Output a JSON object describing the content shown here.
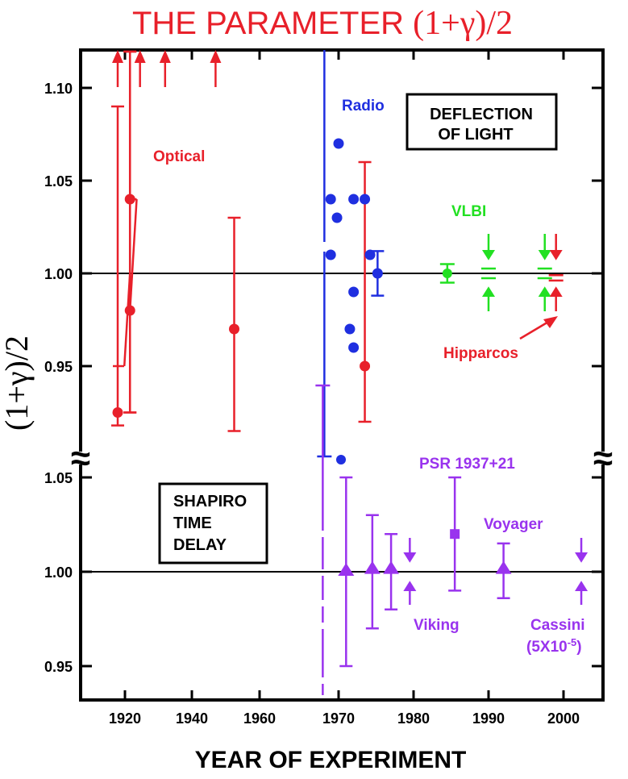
{
  "title": {
    "main": "THE PARAMETER ",
    "expr": "(1+γ)/2",
    "color": "#e8202a"
  },
  "xlabel": "YEAR OF EXPERIMENT",
  "ylabel": "(1+γ)/2",
  "break_symbol": "≈",
  "colors": {
    "optical": "#e8202a",
    "radio": "#1f2fe0",
    "vlbi": "#22e022",
    "shapiro": "#9933ee",
    "axis": "#000000"
  },
  "chart_data": {
    "type": "scatter",
    "x_axis": {
      "label": "YEAR OF EXPERIMENT",
      "ticks": [
        1920,
        1940,
        1960,
        1970,
        1980,
        1990,
        2000
      ],
      "tick_labels": [
        "1920",
        "1940",
        "1960",
        "1970",
        "1980",
        "1990",
        "2000"
      ]
    },
    "panels": [
      {
        "name": "deflection",
        "label": [
          "DEFLECTION",
          "OF LIGHT"
        ],
        "ylim": [
          0.912,
          1.12
        ],
        "yticks": [
          0.95,
          1.0,
          1.05,
          1.1
        ],
        "ytick_labels": [
          "0.95",
          "1.00",
          "1.05",
          "1.10"
        ],
        "reference_line": 1.0,
        "series": [
          {
            "name": "Optical",
            "color": "#e8202a",
            "points": [
              {
                "x": 1919.0,
                "y": 0.925,
                "lo": 0.918,
                "hi": 1.09
              },
              {
                "x": 1921.5,
                "y": 1.04,
                "lo": 0.925,
                "hi": 1.12
              },
              {
                "x": 1921.5,
                "y": 0.98,
                "lo": 0.925,
                "hi": 1.12
              },
              {
                "x": 1952.5,
                "y": 0.97,
                "lo": 0.915,
                "hi": 1.03
              },
              {
                "x": 1973.5,
                "y": 0.95,
                "lo": 0.92,
                "hi": 1.06
              }
            ],
            "lower_limit_arrows": [
              1919.0,
              1924.5,
              1932.0,
              1947.0
            ]
          },
          {
            "name": "Radio",
            "color": "#1f2fe0",
            "points": [
              {
                "x": 1969.0,
                "y": 1.04
              },
              {
                "x": 1969.0,
                "y": 1.01
              },
              {
                "x": 1969.8,
                "y": 1.03
              },
              {
                "x": 1970.0,
                "y": 1.07
              },
              {
                "x": 1971.5,
                "y": 0.97
              },
              {
                "x": 1972.0,
                "y": 0.99
              },
              {
                "x": 1972.0,
                "y": 0.96
              },
              {
                "x": 1972.0,
                "y": 1.04
              },
              {
                "x": 1973.5,
                "y": 1.04
              },
              {
                "x": 1974.2,
                "y": 1.01
              },
              {
                "x": 1975.2,
                "y": 1.0,
                "lo": 0.988,
                "hi": 1.012
              }
            ]
          },
          {
            "name": "VLBI",
            "color": "#22e022",
            "points": [
              {
                "x": 1984.5,
                "y": 1.0,
                "lo": 0.995,
                "hi": 1.005
              },
              {
                "x": 1990.0,
                "y": 1.0,
                "lo": 0.997,
                "hi": 1.003
              },
              {
                "x": 1997.5,
                "y": 1.0,
                "lo": 0.999,
                "hi": 1.001
              }
            ]
          },
          {
            "name": "Hipparcos",
            "color": "#e8202a",
            "points": [
              {
                "x": 1999.0,
                "y": 0.998,
                "lo": 0.997,
                "hi": 0.999
              }
            ]
          }
        ],
        "annotations": [
          "Optical",
          "Radio",
          "VLBI",
          "Hipparcos"
        ]
      },
      {
        "name": "shapiro",
        "label": [
          "SHAPIRO",
          "TIME",
          "DELAY"
        ],
        "ylim": [
          0.93,
          1.06
        ],
        "yticks": [
          0.95,
          1.0,
          1.05
        ],
        "ytick_labels": [
          "0.95",
          "1.00",
          "1.05"
        ],
        "reference_line": 1.0,
        "series": [
          {
            "name": "Shapiro",
            "color": "#9933ee",
            "points": [
              {
                "x": 1971.0,
                "y": 1.0,
                "lo": 0.95,
                "hi": 1.05
              },
              {
                "x": 1974.5,
                "y": 1.001,
                "lo": 0.97,
                "hi": 1.03
              },
              {
                "x": 1977.0,
                "y": 1.001,
                "lo": 0.98,
                "hi": 1.02
              },
              {
                "x": 1979.5,
                "y": 1.0,
                "lo": 0.999,
                "hi": 1.001
              },
              {
                "x": 1985.5,
                "y": 1.02,
                "lo": 0.99,
                "hi": 1.05
              },
              {
                "x": 1992.0,
                "y": 1.001,
                "lo": 0.986,
                "hi": 1.015
              },
              {
                "x": 2004.5,
                "y": 1.0,
                "lo": 0.99999,
                "hi": 1.00001
              }
            ]
          }
        ],
        "annotations": [
          "PSR 1937+21",
          "Voyager",
          "Viking",
          "Cassini",
          "(5X10",
          "-5",
          ")"
        ]
      }
    ]
  }
}
